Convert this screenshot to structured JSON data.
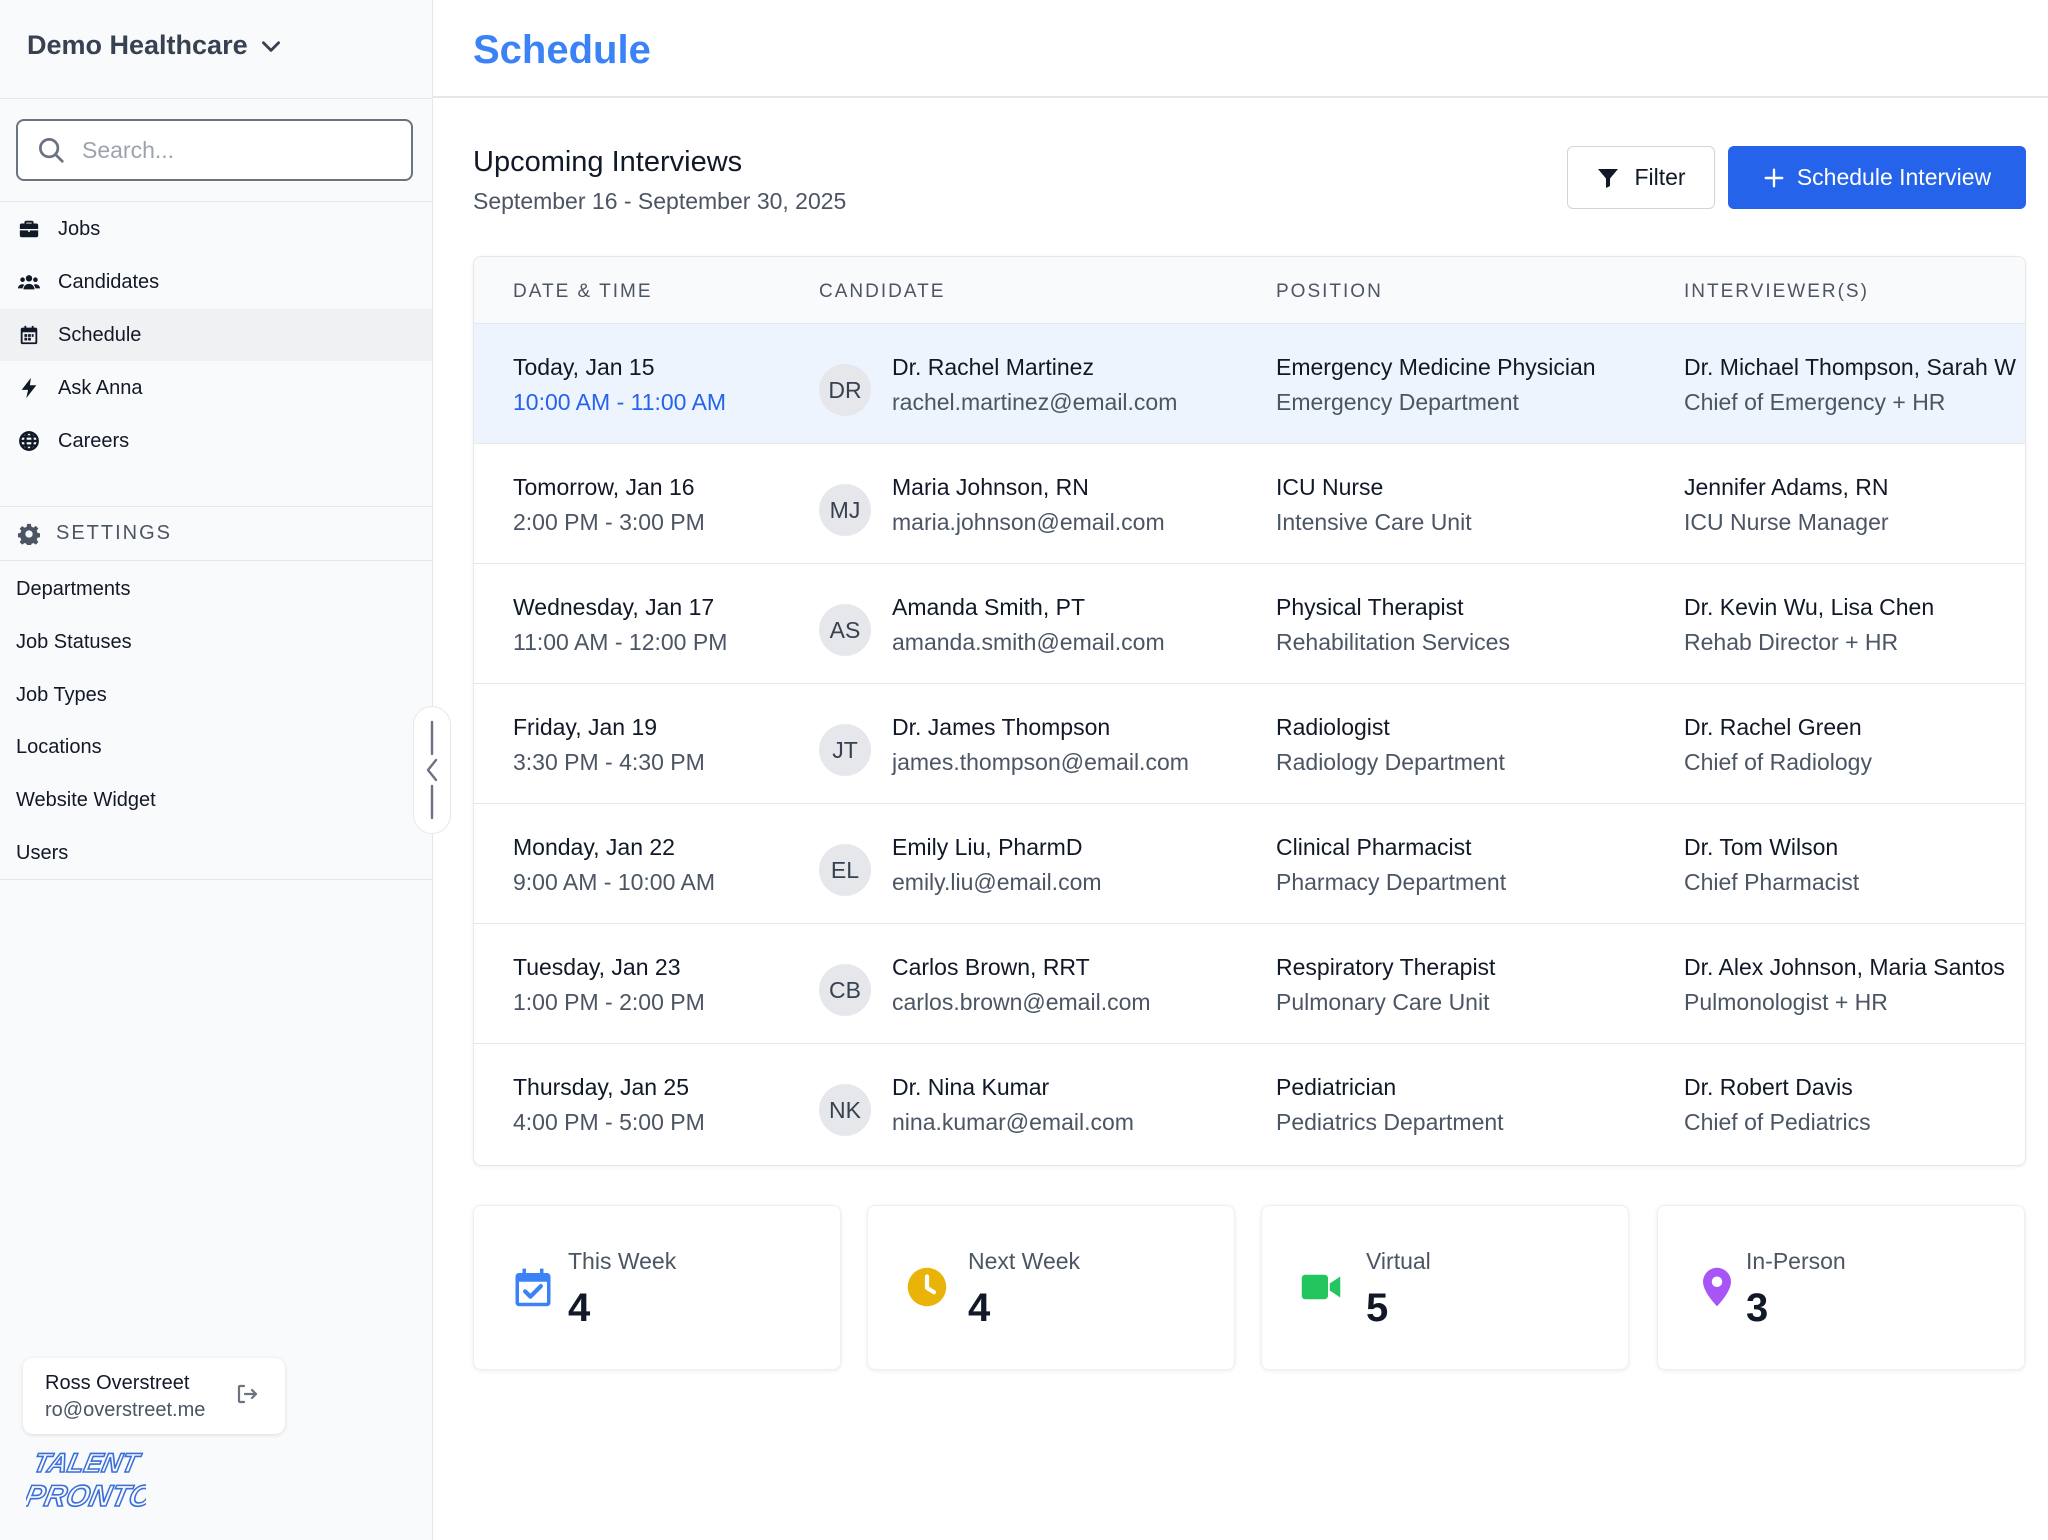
{
  "sidebar": {
    "org_name": "Demo Healthcare",
    "search_placeholder": "Search...",
    "nav": [
      {
        "label": "Jobs",
        "icon": "briefcase-icon"
      },
      {
        "label": "Candidates",
        "icon": "users-icon"
      },
      {
        "label": "Schedule",
        "icon": "calendar-icon"
      },
      {
        "label": "Ask Anna",
        "icon": "bolt-icon"
      },
      {
        "label": "Careers",
        "icon": "globe-icon"
      }
    ],
    "settings_label": "SETTINGS",
    "settings_items": [
      "Departments",
      "Job Statuses",
      "Job Types",
      "Locations",
      "Website Widget",
      "Users"
    ],
    "user": {
      "name": "Ross Overstreet",
      "email": "ro@overstreet.me"
    },
    "logo_text": [
      "TALENT",
      "PRONTO"
    ]
  },
  "header": {
    "title": "Schedule"
  },
  "section": {
    "title": "Upcoming Interviews",
    "subtitle": "September 16 - September 30, 2025",
    "filter_label": "Filter",
    "schedule_label": "Schedule Interview"
  },
  "table": {
    "columns": [
      "DATE & TIME",
      "CANDIDATE",
      "POSITION",
      "INTERVIEWER(S)"
    ],
    "rows": [
      {
        "date": "Today, Jan 15",
        "time": "10:00 AM - 11:00 AM",
        "initials": "DR",
        "name": "Dr. Rachel Martinez",
        "email": "rachel.martinez@email.com",
        "position": "Emergency Medicine Physician",
        "department": "Emergency Department",
        "interviewers": "Dr. Michael Thompson, Sarah W",
        "roles": "Chief of Emergency + HR"
      },
      {
        "date": "Tomorrow, Jan 16",
        "time": "2:00 PM - 3:00 PM",
        "initials": "MJ",
        "name": "Maria Johnson, RN",
        "email": "maria.johnson@email.com",
        "position": "ICU Nurse",
        "department": "Intensive Care Unit",
        "interviewers": "Jennifer Adams, RN",
        "roles": "ICU Nurse Manager"
      },
      {
        "date": "Wednesday, Jan 17",
        "time": "11:00 AM - 12:00 PM",
        "initials": "AS",
        "name": "Amanda Smith, PT",
        "email": "amanda.smith@email.com",
        "position": "Physical Therapist",
        "department": "Rehabilitation Services",
        "interviewers": "Dr. Kevin Wu, Lisa Chen",
        "roles": "Rehab Director + HR"
      },
      {
        "date": "Friday, Jan 19",
        "time": "3:30 PM - 4:30 PM",
        "initials": "JT",
        "name": "Dr. James Thompson",
        "email": "james.thompson@email.com",
        "position": "Radiologist",
        "department": "Radiology Department",
        "interviewers": "Dr. Rachel Green",
        "roles": "Chief of Radiology"
      },
      {
        "date": "Monday, Jan 22",
        "time": "9:00 AM - 10:00 AM",
        "initials": "EL",
        "name": "Emily Liu, PharmD",
        "email": "emily.liu@email.com",
        "position": "Clinical Pharmacist",
        "department": "Pharmacy Department",
        "interviewers": "Dr. Tom Wilson",
        "roles": "Chief Pharmacist"
      },
      {
        "date": "Tuesday, Jan 23",
        "time": "1:00 PM - 2:00 PM",
        "initials": "CB",
        "name": "Carlos Brown, RRT",
        "email": "carlos.brown@email.com",
        "position": "Respiratory Therapist",
        "department": "Pulmonary Care Unit",
        "interviewers": "Dr. Alex Johnson, Maria Santos",
        "roles": "Pulmonologist + HR"
      },
      {
        "date": "Thursday, Jan 25",
        "time": "4:00 PM - 5:00 PM",
        "initials": "NK",
        "name": "Dr. Nina Kumar",
        "email": "nina.kumar@email.com",
        "position": "Pediatrician",
        "department": "Pediatrics Department",
        "interviewers": "Dr. Robert Davis",
        "roles": "Chief of Pediatrics"
      }
    ]
  },
  "stats": [
    {
      "label": "This Week",
      "value": "4",
      "icon": "calendar-check-icon",
      "color": "#3b82f6"
    },
    {
      "label": "Next Week",
      "value": "4",
      "icon": "clock-icon",
      "color": "#eab308"
    },
    {
      "label": "Virtual",
      "value": "5",
      "icon": "video-icon",
      "color": "#22c55e"
    },
    {
      "label": "In-Person",
      "value": "3",
      "icon": "map-pin-icon",
      "color": "#a855f7"
    }
  ],
  "colors": {
    "accent": "#2563eb",
    "title": "#3b82f6",
    "highlight_row": "#eef4fd"
  }
}
